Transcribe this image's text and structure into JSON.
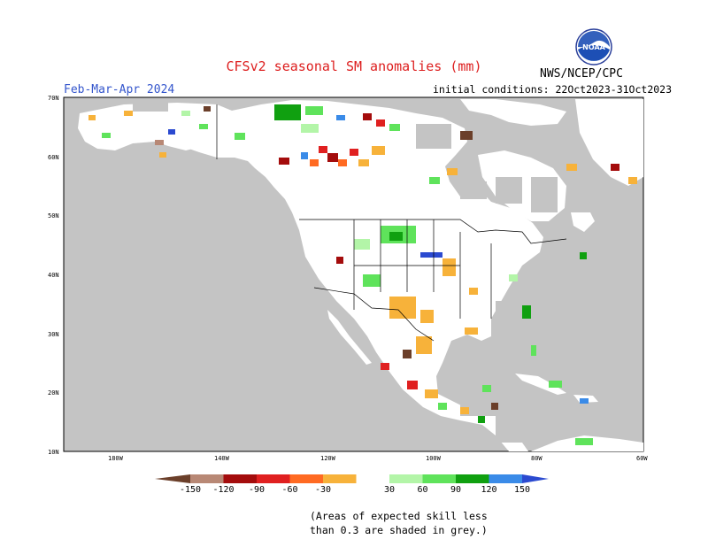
{
  "header": {
    "title": "CFSv2 seasonal SM anomalies (mm)",
    "season": "Feb-Mar-Apr 2024",
    "init": "initial conditions: 22Oct2023-31Oct2023",
    "agency": "NWS/NCEP/CPC",
    "logo_text": "NOAA"
  },
  "map": {
    "lat_labels": [
      "70N",
      "60N",
      "50N",
      "40N",
      "30N",
      "20N",
      "10N"
    ],
    "lon_labels": [
      "180W",
      "140W",
      "120W",
      "100W",
      "80W",
      "60W"
    ],
    "colors": {
      "ocean": "#c4c4c4",
      "land": "#ffffff",
      "skill_grey": "#c4c4c4",
      "coast": "#000000"
    }
  },
  "colorbar": {
    "labels": [
      "-150",
      "-120",
      "-90",
      "-60",
      "-30",
      "30",
      "60",
      "90",
      "120",
      "150"
    ],
    "colors": [
      "#6b3f2a",
      "#b88875",
      "#a40c0c",
      "#e02020",
      "#ff6a22",
      "#f7b23a",
      "#ffffff",
      "#b3f5a8",
      "#5fe35b",
      "#10a010",
      "#3a8be8",
      "#2b4ad0"
    ]
  },
  "footnote": {
    "line1": "(Areas of expected skill less",
    "line2": "than 0.3 are shaded in grey.)"
  }
}
